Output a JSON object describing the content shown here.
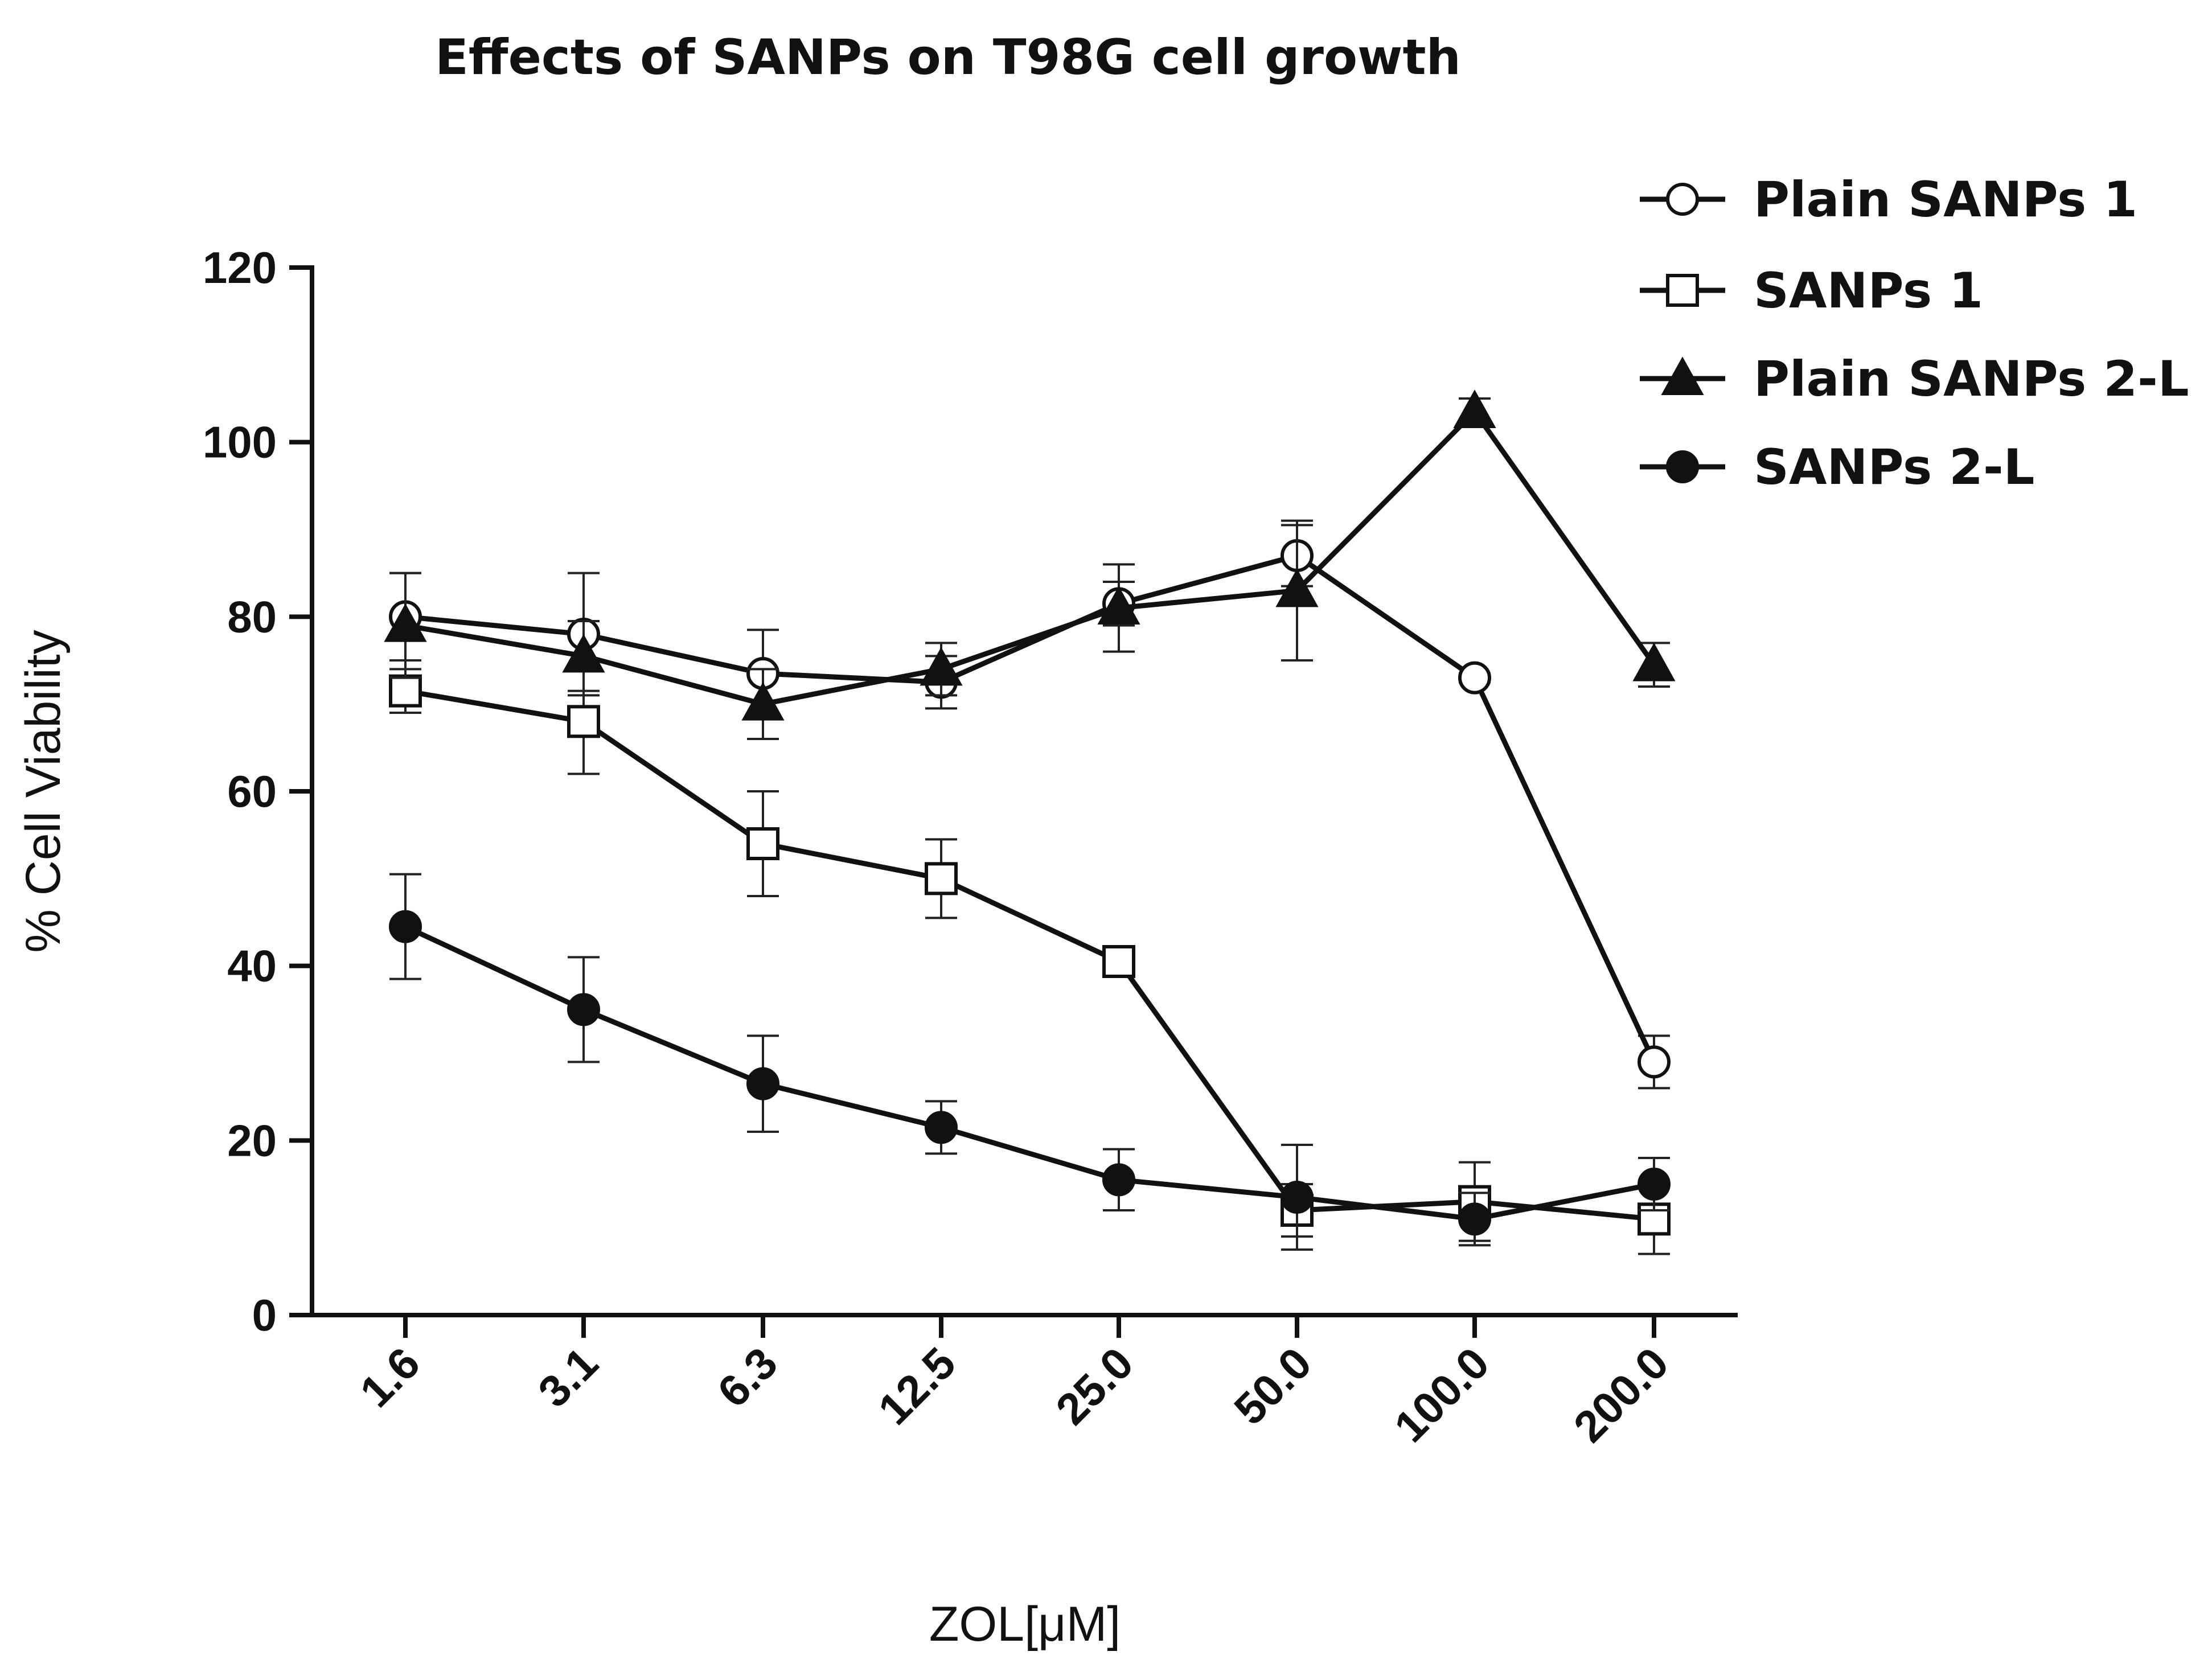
{
  "chart_data": {
    "type": "line",
    "title": "Effects of SANPs on T98G cell growth",
    "xlabel": "ZOL[μM]",
    "ylabel": "% Cell Viability",
    "categories": [
      "1.6",
      "3.1",
      "6.3",
      "12.5",
      "25.0",
      "50.0",
      "100.0",
      "200.0"
    ],
    "ylim": [
      0,
      120
    ],
    "yticks": [
      "0",
      "20",
      "40",
      "60",
      "80",
      "100",
      "120"
    ],
    "grid": false,
    "legend_position": "top-right",
    "series": [
      {
        "name": "Plain SANPs 1",
        "marker": "circle-open",
        "values": [
          80,
          78,
          73.5,
          72.5,
          81.5,
          87,
          73,
          29
        ],
        "errors": [
          5,
          7,
          5,
          3,
          2.5,
          3.5,
          0.5,
          3
        ]
      },
      {
        "name": "SANPs 1",
        "marker": "square-open",
        "values": [
          71.5,
          68,
          54,
          50,
          40.5,
          12,
          13,
          11
        ],
        "errors": [
          2.5,
          6,
          6,
          4.5,
          1,
          3,
          4.5,
          4
        ]
      },
      {
        "name": "Plain SANPs 2-L",
        "marker": "triangle-filled",
        "values": [
          79,
          75.5,
          70,
          74,
          81,
          83,
          103.5,
          74.5
        ],
        "errors": [
          6,
          4,
          4,
          3,
          5,
          8,
          1.5,
          2.5
        ]
      },
      {
        "name": "SANPs 2-L",
        "marker": "circle-filled",
        "values": [
          44.5,
          35,
          26.5,
          21.5,
          15.5,
          13.5,
          11,
          15
        ],
        "errors": [
          6,
          6,
          5.5,
          3,
          3.5,
          6,
          3,
          3
        ]
      }
    ]
  }
}
